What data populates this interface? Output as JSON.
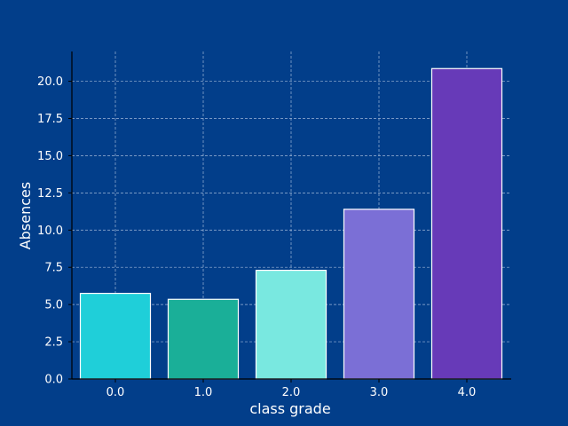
{
  "chart_data": {
    "type": "bar",
    "title": "",
    "xlabel": "class grade",
    "ylabel": "Absences",
    "categories": [
      "0.0",
      "1.0",
      "2.0",
      "3.0",
      "4.0"
    ],
    "values": [
      5.75,
      5.35,
      7.3,
      11.4,
      20.85
    ],
    "ylim": [
      0,
      22.0
    ],
    "yticks": [
      "0.0",
      "2.5",
      "5.0",
      "7.5",
      "10.0",
      "12.5",
      "15.0",
      "17.5",
      "20.0"
    ],
    "grid": true,
    "colors": {
      "background": "#023e8a",
      "bars": [
        "#1fcfd9",
        "#1aaf98",
        "#79e8e0",
        "#7b6fd6",
        "#673ab8"
      ],
      "bar_edge": "#ffffff",
      "grid": "#9fb7d8",
      "axis": "#000000",
      "text": "#ffffff"
    }
  }
}
